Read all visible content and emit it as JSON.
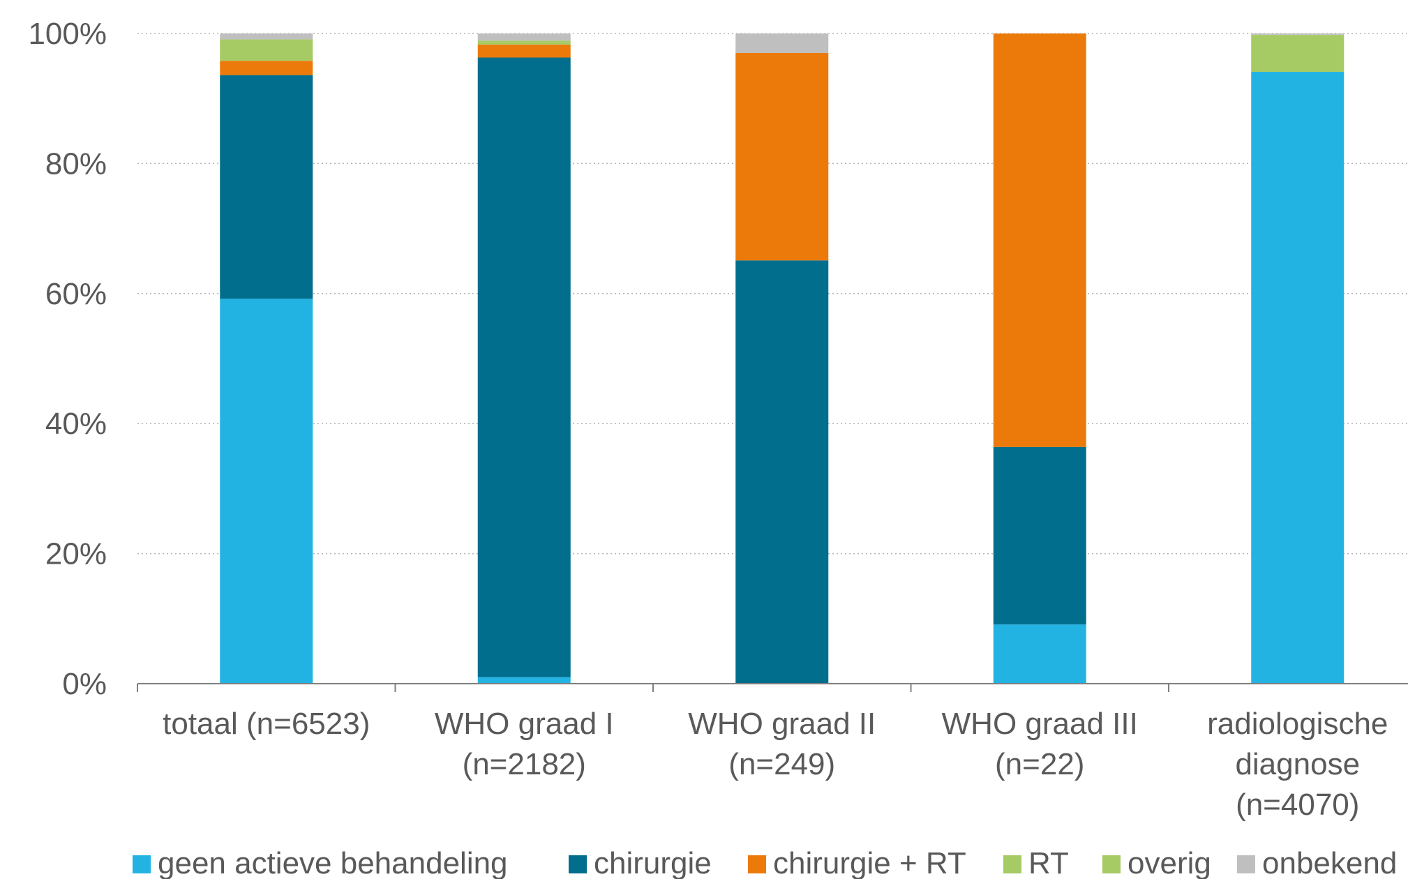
{
  "chart_data": {
    "type": "bar",
    "stacked": "percent",
    "categories": [
      [
        "totaal (n=6523)"
      ],
      [
        "WHO graad I",
        "(n=2182)"
      ],
      [
        "WHO graad II",
        "(n=249)"
      ],
      [
        "WHO graad III",
        "(n=22)"
      ],
      [
        "radiologische",
        "diagnose",
        "(n=4070)"
      ]
    ],
    "series": [
      {
        "name": "geen actieve behandeling",
        "color": "#23b3e3",
        "values": [
          59.2,
          1.0,
          0.0,
          9.1,
          94.1
        ]
      },
      {
        "name": "chirurgie",
        "color": "#006e8c",
        "values": [
          34.4,
          95.3,
          65.1,
          27.3,
          0.0
        ]
      },
      {
        "name": "chirurgie + RT",
        "color": "#ec7a0a",
        "values": [
          2.2,
          2.0,
          31.9,
          63.6,
          0.0
        ]
      },
      {
        "name": "RT",
        "color": "#a6ca64",
        "values": [
          3.3,
          0.4,
          0.0,
          0.0,
          5.5
        ]
      },
      {
        "name": "overig",
        "color": "#a6ca64",
        "values": [
          0.0,
          0.2,
          0.0,
          0.0,
          0.2
        ]
      },
      {
        "name": "onbekend",
        "color": "#bfbfbf",
        "values": [
          0.9,
          1.1,
          3.0,
          0.0,
          0.2
        ]
      }
    ],
    "yticks": [
      "0%",
      "20%",
      "40%",
      "60%",
      "80%",
      "100%"
    ],
    "ylim": [
      0,
      100
    ],
    "grid": true,
    "legend_position": "bottom"
  }
}
